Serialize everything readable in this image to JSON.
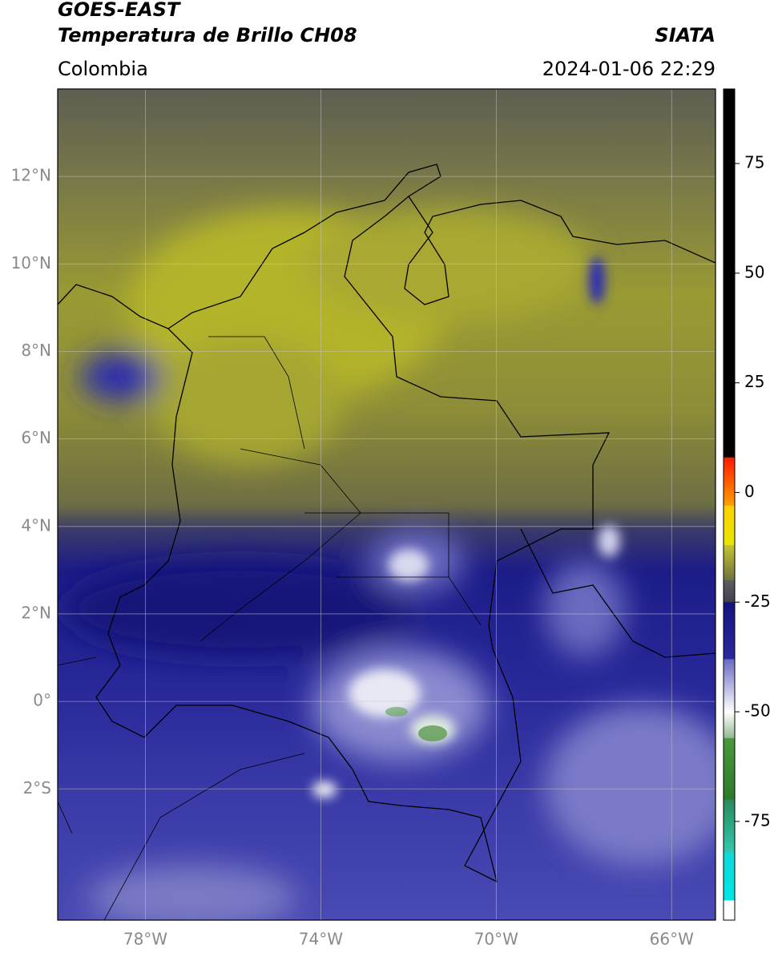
{
  "header": {
    "title": "GOES-EAST",
    "subtitle": "Temperatura de Brillo CH08",
    "source": "SIATA",
    "region": "Colombia",
    "datetime": "2024-01-06 22:29"
  },
  "map": {
    "xlim": [
      -80,
      -65
    ],
    "ylim": [
      -5,
      14
    ],
    "xticks": [
      {
        "value": -78,
        "label": "78°W"
      },
      {
        "value": -74,
        "label": "74°W"
      },
      {
        "value": -70,
        "label": "70°W"
      },
      {
        "value": -66,
        "label": "66°W"
      }
    ],
    "yticks": [
      {
        "value": 12,
        "label": "12°N"
      },
      {
        "value": 10,
        "label": "10°N"
      },
      {
        "value": 8,
        "label": "8°N"
      },
      {
        "value": 6,
        "label": "6°N"
      },
      {
        "value": 4,
        "label": "4°N"
      },
      {
        "value": 2,
        "label": "2°N"
      },
      {
        "value": 0,
        "label": "0°"
      },
      {
        "value": -2,
        "label": "2°S"
      }
    ],
    "grid": true
  },
  "colorbar": {
    "lim": [
      -97.5,
      92
    ],
    "ticks": [
      75,
      50,
      25,
      0,
      -25,
      -50,
      -75
    ],
    "segments": [
      {
        "from": 92,
        "to": 8,
        "colors": [
          "#000000",
          "#000000"
        ]
      },
      {
        "from": 8,
        "to": -3,
        "colors": [
          "#ff1a00",
          "#ffa000"
        ]
      },
      {
        "from": -3,
        "to": -12,
        "colors": [
          "#ffd000",
          "#e6e600"
        ]
      },
      {
        "from": -12,
        "to": -20,
        "colors": [
          "#c4c430",
          "#707040"
        ]
      },
      {
        "from": -20,
        "to": -25,
        "colors": [
          "#5e5e5e",
          "#404050"
        ]
      },
      {
        "from": -25,
        "to": -38,
        "colors": [
          "#141480",
          "#2a2aa0"
        ]
      },
      {
        "from": -38,
        "to": -50,
        "colors": [
          "#6a6ac4",
          "#ffffff"
        ]
      },
      {
        "from": -50,
        "to": -56,
        "colors": [
          "#ffffff",
          "#90b890"
        ]
      },
      {
        "from": -56,
        "to": -70,
        "colors": [
          "#4a9a3a",
          "#2a7a2a"
        ]
      },
      {
        "from": -70,
        "to": -82,
        "colors": [
          "#2a8a5a",
          "#30c8b0"
        ]
      },
      {
        "from": -82,
        "to": -93,
        "colors": [
          "#10d8d8",
          "#00e6e6"
        ]
      },
      {
        "from": -93,
        "to": -97.5,
        "colors": [
          "#ffffff",
          "#ffffff"
        ]
      }
    ]
  }
}
